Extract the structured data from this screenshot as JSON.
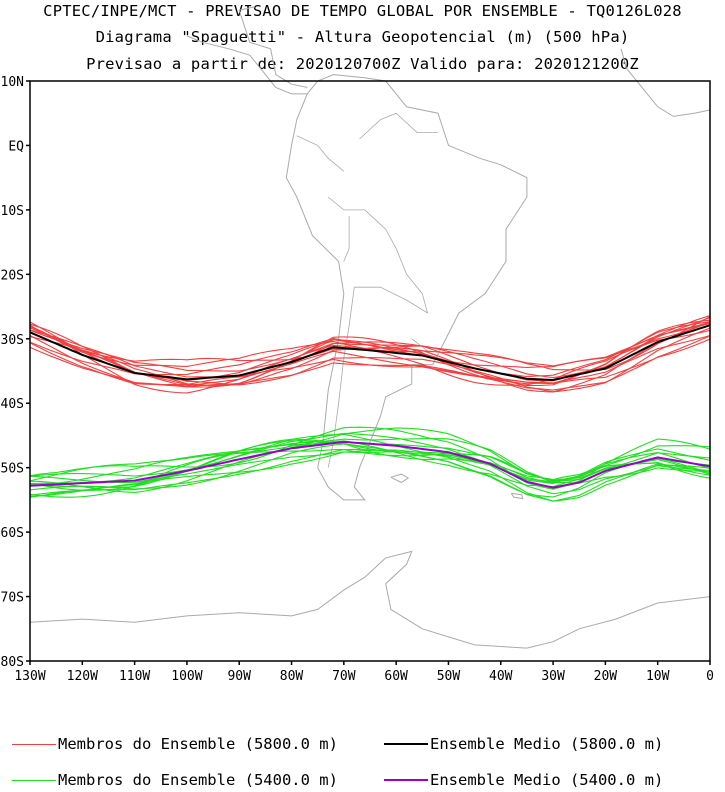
{
  "titles": {
    "line1": "CPTEC/INPE/MCT - PREVISAO DE TEMPO GLOBAL POR ENSEMBLE - TQ0126L028",
    "line2": "Diagrama \"Spaguetti\" - Altura Geopotencial (m) (500 hPa)",
    "line3": "Previsao a partir de: 2020120700Z  Valido para: 2020121200Z"
  },
  "axes": {
    "lat_labels": [
      "10N",
      "EQ",
      "10S",
      "20S",
      "30S",
      "40S",
      "50S",
      "60S",
      "70S",
      "80S"
    ],
    "lon_labels": [
      "130W",
      "120W",
      "110W",
      "100W",
      "90W",
      "80W",
      "70W",
      "60W",
      "50W",
      "40W",
      "30W",
      "20W",
      "10W",
      "0"
    ],
    "lat_range": [
      -80,
      10
    ],
    "lon_range": [
      -130,
      0
    ]
  },
  "colors": {
    "member_5800": "#f04040",
    "mean_5800": "#000000",
    "member_5400": "#22dd22",
    "mean_5400": "#9900cc",
    "coast": "#aaaaaa"
  },
  "chart_data": {
    "type": "line",
    "series": [
      {
        "name": "Ensemble Medio (5800.0 m)",
        "color": "#000000",
        "lon": [
          -130,
          -120,
          -110,
          -100,
          -90,
          -80,
          -72,
          -65,
          -55,
          -45,
          -35,
          -30,
          -20,
          -10,
          0
        ],
        "lat": [
          -29,
          -32.5,
          -35.3,
          -36.3,
          -35.7,
          -33.6,
          -31.3,
          -31.8,
          -32.6,
          -34.6,
          -36.2,
          -36.4,
          -34.6,
          -30.5,
          -27.9
        ]
      },
      {
        "name": "Ensemble Medio (5400.0 m)",
        "color": "#9900cc",
        "lon": [
          -130,
          -120,
          -110,
          -100,
          -90,
          -80,
          -70,
          -60,
          -50,
          -42,
          -35,
          -30,
          -25,
          -20,
          -10,
          0
        ],
        "lat": [
          -52.8,
          -52.4,
          -52.0,
          -50.5,
          -48.7,
          -47.0,
          -46.0,
          -46.6,
          -47.6,
          -49.4,
          -52.2,
          -53.1,
          -52.3,
          -50.5,
          -48.4,
          -49.8
        ]
      }
    ],
    "member_groups": [
      {
        "name": "Membros do Ensemble (5800.0 m)",
        "color": "#f04040",
        "base": "Ensemble Medio (5800.0 m)",
        "count": 14
      },
      {
        "name": "Membros do Ensemble (5400.0 m)",
        "color": "#22dd22",
        "base": "Ensemble Medio (5400.0 m)",
        "count": 14
      }
    ]
  },
  "legend": {
    "members_5800": "Membros do Ensemble (5800.0 m)",
    "mean_5800": "Ensemble Medio (5800.0 m)",
    "members_5400": "Membros do Ensemble (5400.0 m)",
    "mean_5400": "Ensemble Medio (5400.0 m)"
  }
}
